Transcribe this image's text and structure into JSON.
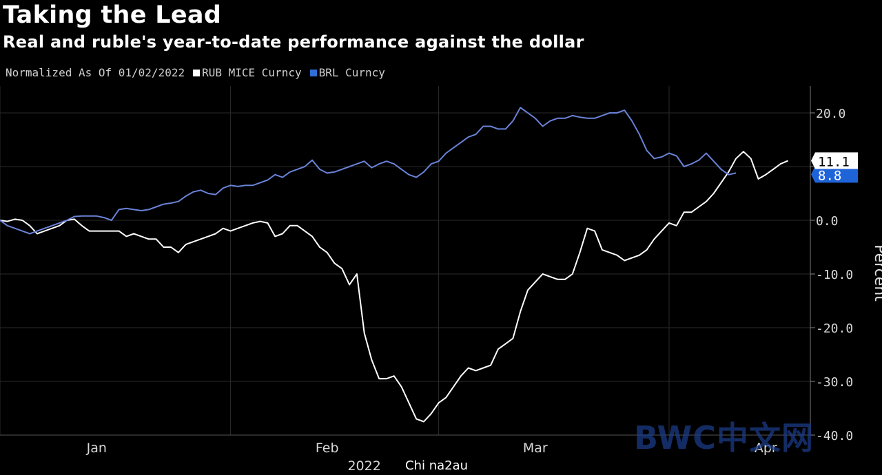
{
  "header": {
    "title": "Taking the Lead",
    "subtitle": "Real and ruble's year-to-date performance against the dollar"
  },
  "legend": {
    "note": "Normalized As Of 01/02/2022",
    "items": [
      {
        "label": "RUB MICE Curncy",
        "color": "#ffffff"
      },
      {
        "label": "BRL Curncy",
        "color": "#2f6fd6"
      }
    ]
  },
  "watermark": "BWC中文网",
  "source_caption": "2022",
  "overlay_text": "Chi na2au",
  "chart_data": {
    "type": "line",
    "title": "Taking the Lead",
    "subtitle": "Real and ruble's year-to-date performance against the dollar",
    "xlabel": "",
    "ylabel": "Percent",
    "x_year": "2022",
    "x_ticks": [
      "Jan",
      "Feb",
      "Mar",
      "Apr"
    ],
    "x_tick_days": [
      13,
      44,
      72,
      103
    ],
    "xlim": [
      0,
      109
    ],
    "ylim": [
      -40,
      25
    ],
    "y_ticks": [
      20.0,
      10.0,
      0.0,
      -10.0,
      -20.0,
      -30.0,
      -40.0
    ],
    "y_tick_labels": [
      "20.0",
      "10.0",
      "0.0",
      "-10.0",
      "-20.0",
      "-30.0",
      "-40.0"
    ],
    "grid": true,
    "legend_position": "top-left",
    "end_labels": [
      {
        "series": "RUB MICE Curncy",
        "text": "11.1",
        "value": 11.1
      },
      {
        "series": "BRL Curncy",
        "text": "8.8",
        "value": 8.8
      }
    ],
    "series": [
      {
        "name": "RUB MICE Curncy",
        "color": "#ffffff",
        "points": [
          [
            0,
            0
          ],
          [
            1,
            -0.2
          ],
          [
            2,
            0.2
          ],
          [
            3,
            0
          ],
          [
            4,
            -1
          ],
          [
            5,
            -2.5
          ],
          [
            6,
            -2
          ],
          [
            7,
            -1.5
          ],
          [
            8,
            -1
          ],
          [
            9,
            0
          ],
          [
            10,
            0.2
          ],
          [
            11,
            -1
          ],
          [
            12,
            -2
          ],
          [
            13,
            -2
          ],
          [
            14,
            -2
          ],
          [
            15,
            -2
          ],
          [
            16,
            -2
          ],
          [
            17,
            -3
          ],
          [
            18,
            -2.5
          ],
          [
            19,
            -3
          ],
          [
            20,
            -3.5
          ],
          [
            21,
            -3.5
          ],
          [
            22,
            -5
          ],
          [
            23,
            -5
          ],
          [
            24,
            -6
          ],
          [
            25,
            -4.5
          ],
          [
            26,
            -4
          ],
          [
            27,
            -3.5
          ],
          [
            28,
            -3
          ],
          [
            29,
            -2.5
          ],
          [
            30,
            -1.5
          ],
          [
            31,
            -2
          ],
          [
            32,
            -1.5
          ],
          [
            33,
            -1
          ],
          [
            34,
            -0.5
          ],
          [
            35,
            -0.2
          ],
          [
            36,
            -0.5
          ],
          [
            37,
            -3
          ],
          [
            38,
            -2.5
          ],
          [
            39,
            -1
          ],
          [
            40,
            -1
          ],
          [
            41,
            -2
          ],
          [
            42,
            -3
          ],
          [
            43,
            -5
          ],
          [
            44,
            -6
          ],
          [
            45,
            -8
          ],
          [
            46,
            -9
          ],
          [
            47,
            -12
          ],
          [
            48,
            -10
          ],
          [
            49,
            -21
          ],
          [
            50,
            -26
          ],
          [
            51,
            -29.5
          ],
          [
            52,
            -29.5
          ],
          [
            53,
            -29
          ],
          [
            54,
            -31
          ],
          [
            55,
            -34
          ],
          [
            56,
            -37
          ],
          [
            57,
            -37.5
          ],
          [
            58,
            -36
          ],
          [
            59,
            -34
          ],
          [
            60,
            -33
          ],
          [
            61,
            -31
          ],
          [
            62,
            -29
          ],
          [
            63,
            -27.5
          ],
          [
            64,
            -28
          ],
          [
            65,
            -27.5
          ],
          [
            66,
            -27
          ],
          [
            67,
            -24
          ],
          [
            68,
            -23
          ],
          [
            69,
            -22
          ],
          [
            70,
            -17
          ],
          [
            71,
            -13
          ],
          [
            72,
            -11.5
          ],
          [
            73,
            -10
          ],
          [
            74,
            -10.5
          ],
          [
            75,
            -11
          ],
          [
            76,
            -11
          ],
          [
            77,
            -10
          ],
          [
            78,
            -6
          ],
          [
            79,
            -1.5
          ],
          [
            80,
            -2
          ],
          [
            81,
            -5.5
          ],
          [
            82,
            -6
          ],
          [
            83,
            -6.5
          ],
          [
            84,
            -7.5
          ],
          [
            85,
            -7
          ],
          [
            86,
            -6.5
          ],
          [
            87,
            -5.5
          ],
          [
            88,
            -3.5
          ],
          [
            89,
            -2
          ],
          [
            90,
            -0.5
          ],
          [
            91,
            -1
          ],
          [
            92,
            1.5
          ],
          [
            93,
            1.5
          ],
          [
            94,
            2.5
          ],
          [
            95,
            3.5
          ],
          [
            96,
            5
          ],
          [
            97,
            7
          ],
          [
            98,
            9
          ],
          [
            99,
            11.5
          ],
          [
            100,
            12.8
          ],
          [
            101,
            11.5
          ],
          [
            102,
            7.7
          ],
          [
            103,
            8.5
          ],
          [
            104,
            9.5
          ],
          [
            105,
            10.5
          ],
          [
            106,
            11.1
          ]
        ]
      },
      {
        "name": "BRL Curncy",
        "color": "#6a83d9",
        "points": [
          [
            0,
            0
          ],
          [
            1,
            -1
          ],
          [
            2,
            -1.5
          ],
          [
            3,
            -2
          ],
          [
            4,
            -2.5
          ],
          [
            5,
            -2
          ],
          [
            6,
            -1.5
          ],
          [
            7,
            -1
          ],
          [
            8,
            -0.5
          ],
          [
            9,
            0
          ],
          [
            10,
            0.7
          ],
          [
            11,
            0.8
          ],
          [
            12,
            0.8
          ],
          [
            13,
            0.8
          ],
          [
            14,
            0.5
          ],
          [
            15,
            0
          ],
          [
            16,
            2
          ],
          [
            17,
            2.2
          ],
          [
            18,
            2
          ],
          [
            19,
            1.8
          ],
          [
            20,
            2
          ],
          [
            21,
            2.5
          ],
          [
            22,
            3
          ],
          [
            23,
            3.2
          ],
          [
            24,
            3.5
          ],
          [
            25,
            4.5
          ],
          [
            26,
            5.3
          ],
          [
            27,
            5.6
          ],
          [
            28,
            5
          ],
          [
            29,
            4.8
          ],
          [
            30,
            6
          ],
          [
            31,
            6.5
          ],
          [
            32,
            6.3
          ],
          [
            33,
            6.5
          ],
          [
            34,
            6.5
          ],
          [
            35,
            7
          ],
          [
            36,
            7.5
          ],
          [
            37,
            8.5
          ],
          [
            38,
            8
          ],
          [
            39,
            9
          ],
          [
            40,
            9.5
          ],
          [
            41,
            10
          ],
          [
            42,
            11.2
          ],
          [
            43,
            9.5
          ],
          [
            44,
            8.8
          ],
          [
            45,
            9
          ],
          [
            46,
            9.5
          ],
          [
            47,
            10
          ],
          [
            48,
            10.5
          ],
          [
            49,
            11
          ],
          [
            50,
            9.8
          ],
          [
            51,
            10.5
          ],
          [
            52,
            11
          ],
          [
            53,
            10.5
          ],
          [
            54,
            9.5
          ],
          [
            55,
            8.5
          ],
          [
            56,
            8
          ],
          [
            57,
            9
          ],
          [
            58,
            10.5
          ],
          [
            59,
            11
          ],
          [
            60,
            12.5
          ],
          [
            61,
            13.5
          ],
          [
            62,
            14.5
          ],
          [
            63,
            15.5
          ],
          [
            64,
            16
          ],
          [
            65,
            17.5
          ],
          [
            66,
            17.5
          ],
          [
            67,
            17
          ],
          [
            68,
            17
          ],
          [
            69,
            18.5
          ],
          [
            70,
            21
          ],
          [
            71,
            20
          ],
          [
            72,
            19
          ],
          [
            73,
            17.5
          ],
          [
            74,
            18.5
          ],
          [
            75,
            19
          ],
          [
            76,
            19
          ],
          [
            77,
            19.5
          ],
          [
            78,
            19.2
          ],
          [
            79,
            19
          ],
          [
            80,
            19
          ],
          [
            81,
            19.5
          ],
          [
            82,
            20
          ],
          [
            83,
            20
          ],
          [
            84,
            20.5
          ],
          [
            85,
            18.5
          ],
          [
            86,
            16
          ],
          [
            87,
            13
          ],
          [
            88,
            11.5
          ],
          [
            89,
            11.8
          ],
          [
            90,
            12.5
          ],
          [
            91,
            12
          ],
          [
            92,
            10
          ],
          [
            93,
            10.5
          ],
          [
            94,
            11.2
          ],
          [
            95,
            12.5
          ],
          [
            96,
            11
          ],
          [
            97,
            9.5
          ],
          [
            98,
            8.5
          ],
          [
            99,
            8.8
          ]
        ]
      }
    ]
  }
}
